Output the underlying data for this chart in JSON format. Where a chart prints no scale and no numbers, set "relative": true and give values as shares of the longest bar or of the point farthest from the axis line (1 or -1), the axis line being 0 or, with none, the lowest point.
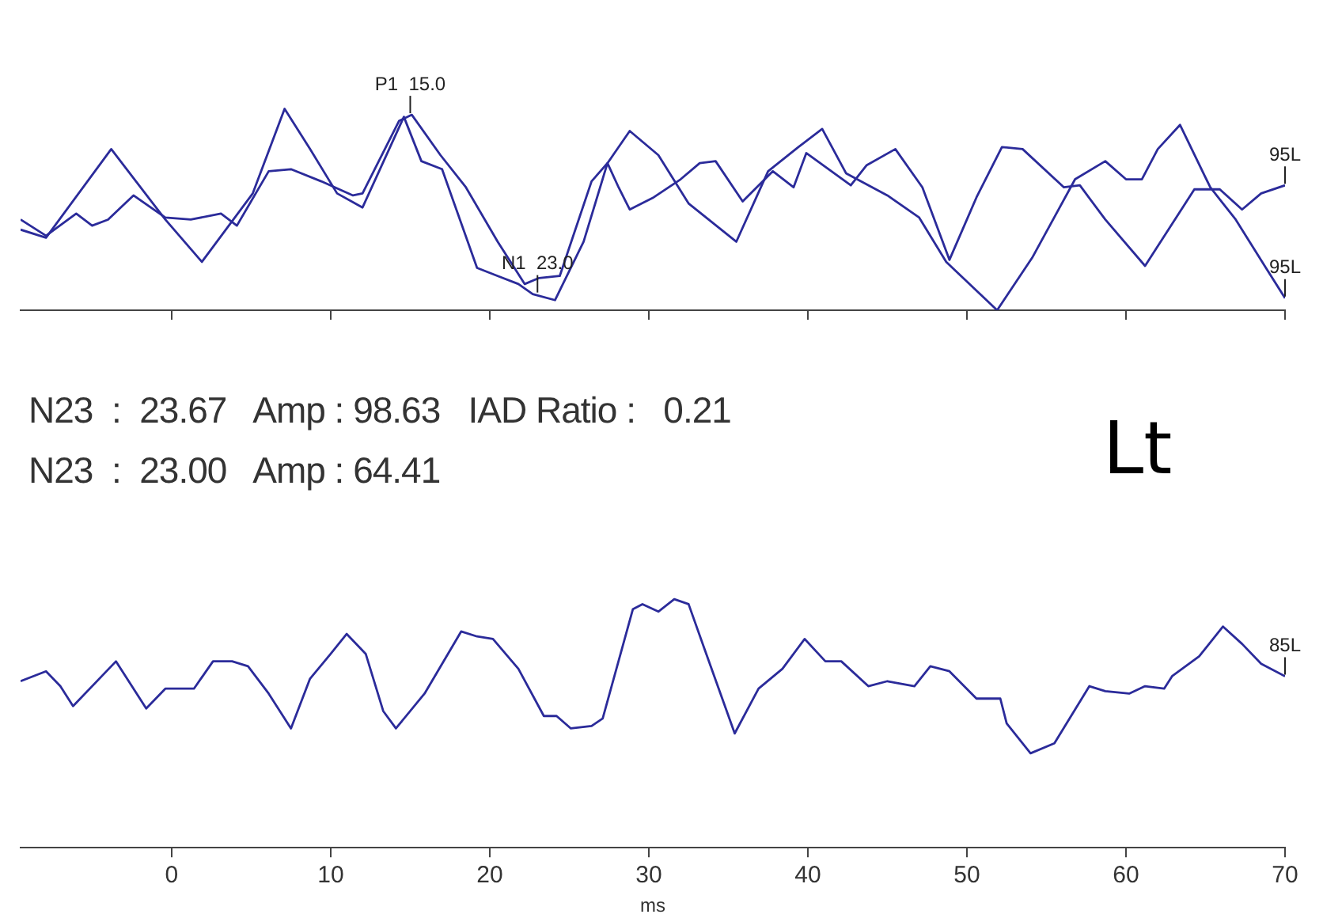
{
  "chart_data": [
    {
      "type": "line",
      "relative": true,
      "xlim": [
        -9.5,
        70
      ],
      "xticks": [
        0,
        10,
        20,
        30,
        40,
        50,
        60,
        70
      ],
      "tick_labels": false,
      "marker": "none",
      "series": [
        {
          "color": "#2b2b9a",
          "x": [
            -9.5,
            -7.9,
            -3.8,
            -0.4,
            1.9,
            5.1,
            7.1,
            8.7,
            10.4,
            12.0,
            14.6,
            15.7,
            17.0,
            19.2,
            20.5,
            21.8,
            22.7,
            24.1,
            25.9,
            27.4,
            28.8,
            30.6,
            32.5,
            35.5,
            37.5,
            39.4,
            40.9,
            42.4,
            45.0,
            47.0,
            48.7,
            51.9,
            54.1,
            56.8,
            58.7,
            60.0,
            61.0,
            62.0,
            63.4,
            65.3,
            66.9,
            68.8,
            70
          ],
          "values": [
            0.4,
            0.36,
            0.8,
            0.45,
            0.24,
            0.58,
            1.0,
            0.8,
            0.58,
            0.51,
            0.96,
            0.74,
            0.7,
            0.21,
            0.17,
            0.13,
            0.08,
            0.05,
            0.34,
            0.73,
            0.89,
            0.77,
            0.53,
            0.34,
            0.69,
            0.81,
            0.9,
            0.68,
            0.57,
            0.46,
            0.24,
            0.0,
            0.26,
            0.65,
            0.74,
            0.65,
            0.65,
            0.8,
            0.92,
            0.61,
            0.45,
            0.21,
            0.06
          ]
        },
        {
          "color": "#2b2b9a",
          "x": [
            -9.5,
            -7.9,
            -6.0,
            -5.0,
            -4.0,
            -2.4,
            -0.4,
            1.2,
            3.1,
            4.1,
            6.1,
            7.5,
            9.4,
            11.4,
            12.0,
            14.3,
            15.1,
            16.9,
            18.5,
            20.5,
            22.2,
            23.1,
            24.4,
            26.4,
            27.4,
            28.1,
            28.8,
            30.3,
            32.0,
            33.2,
            34.2,
            35.9,
            37.8,
            39.1,
            39.9,
            42.7,
            43.7,
            45.5,
            47.2,
            48.9,
            50.6,
            52.2,
            53.5,
            56.1,
            57.1,
            58.7,
            61.2,
            64.3,
            65.9,
            67.3,
            68.5,
            70
          ],
          "values": [
            0.45,
            0.37,
            0.48,
            0.42,
            0.45,
            0.57,
            0.46,
            0.45,
            0.48,
            0.42,
            0.69,
            0.7,
            0.64,
            0.57,
            0.58,
            0.94,
            0.97,
            0.77,
            0.61,
            0.34,
            0.13,
            0.16,
            0.17,
            0.64,
            0.73,
            0.61,
            0.5,
            0.56,
            0.65,
            0.73,
            0.74,
            0.54,
            0.69,
            0.61,
            0.78,
            0.62,
            0.72,
            0.8,
            0.61,
            0.25,
            0.56,
            0.81,
            0.8,
            0.61,
            0.62,
            0.45,
            0.22,
            0.6,
            0.6,
            0.5,
            0.58,
            0.62
          ]
        }
      ],
      "annotations": [
        {
          "text": "P1  15.0",
          "x": 15,
          "y": 0.97
        },
        {
          "text": "N1  23.0",
          "x": 23,
          "y": 0.08
        },
        {
          "text": "95L",
          "x": 70,
          "y": 0.62
        },
        {
          "text": "95L",
          "x": 70,
          "y": 0.06
        },
        "N23  :  23.67   Amp : 98.63   IAD Ratio :   0.21",
        "Lt"
      ]
    },
    {
      "type": "line",
      "relative": true,
      "xlim": [
        -9.5,
        70
      ],
      "xticks": [
        0,
        10,
        20,
        30,
        40,
        50,
        60,
        70
      ],
      "xlabel": "ms",
      "marker": "none",
      "series": [
        {
          "color": "#2b2b9a",
          "x": [
            -9.5,
            -7.9,
            -7.0,
            -6.2,
            -3.5,
            -1.6,
            -0.4,
            1.4,
            2.6,
            3.8,
            4.8,
            6.1,
            7.5,
            8.7,
            10.0,
            11.0,
            12.2,
            13.3,
            14.1,
            15.9,
            18.2,
            19.2,
            20.2,
            21.8,
            23.4,
            24.2,
            25.1,
            26.4,
            27.1,
            29.0,
            29.6,
            30.6,
            31.6,
            32.5,
            33.5,
            35.4,
            36.9,
            38.4,
            39.8,
            41.1,
            42.1,
            43.8,
            45.0,
            46.7,
            47.7,
            48.9,
            50.6,
            52.1,
            52.5,
            54.0,
            55.5,
            57.7,
            58.7,
            60.2,
            61.2,
            62.4,
            62.9,
            64.6,
            66.1,
            67.3,
            68.5,
            70
          ],
          "values": [
            0.67,
            0.71,
            0.65,
            0.57,
            0.75,
            0.56,
            0.64,
            0.64,
            0.75,
            0.75,
            0.73,
            0.62,
            0.48,
            0.68,
            0.78,
            0.86,
            0.78,
            0.55,
            0.48,
            0.62,
            0.87,
            0.85,
            0.84,
            0.72,
            0.53,
            0.53,
            0.48,
            0.49,
            0.52,
            0.96,
            0.98,
            0.95,
            1.0,
            0.98,
            0.8,
            0.46,
            0.64,
            0.72,
            0.84,
            0.75,
            0.75,
            0.65,
            0.67,
            0.65,
            0.73,
            0.71,
            0.6,
            0.6,
            0.5,
            0.38,
            0.42,
            0.65,
            0.63,
            0.62,
            0.65,
            0.64,
            0.69,
            0.77,
            0.89,
            0.82,
            0.74,
            0.69
          ]
        }
      ],
      "annotations": [
        {
          "text": "85L",
          "x": 70,
          "y": 0.69
        },
        "N23  :  23.00   Amp : 64.41"
      ]
    }
  ]
}
